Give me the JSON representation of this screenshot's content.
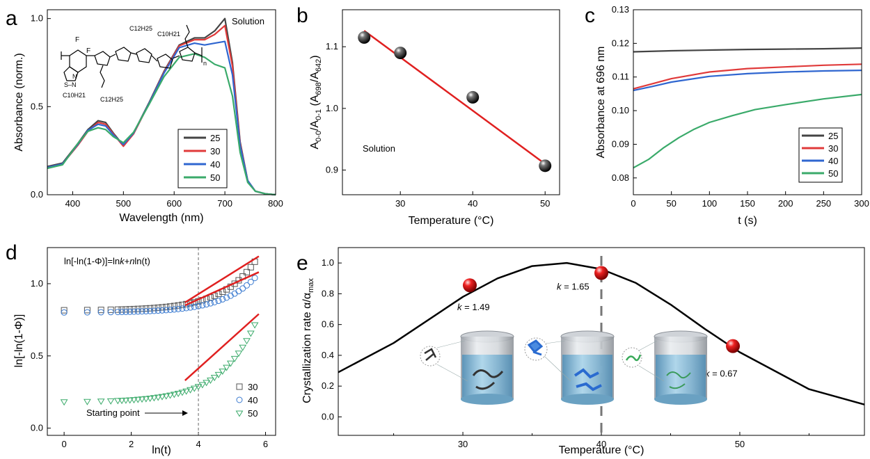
{
  "chart_data": [
    {
      "id": "a",
      "type": "line",
      "panel_label": "a",
      "xlabel": "Wavelength (nm)",
      "ylabel": "Absorbance (norm.)",
      "xlim": [
        350,
        800
      ],
      "ylim": [
        0,
        1.05
      ],
      "xticks": [
        400,
        500,
        600,
        700,
        800
      ],
      "yticks": [
        0.0,
        0.5,
        1.0
      ],
      "annotation": "Solution",
      "legend_position": "bottom-right",
      "series": [
        {
          "name": "25",
          "color": "#444444",
          "x": [
            350,
            380,
            410,
            430,
            450,
            465,
            480,
            500,
            520,
            550,
            580,
            610,
            640,
            660,
            680,
            700,
            715,
            730,
            745,
            760,
            780,
            800
          ],
          "y": [
            0.16,
            0.18,
            0.29,
            0.37,
            0.42,
            0.41,
            0.35,
            0.28,
            0.35,
            0.52,
            0.7,
            0.85,
            0.89,
            0.89,
            0.93,
            1.0,
            0.75,
            0.3,
            0.08,
            0.02,
            0.005,
            0.0
          ]
        },
        {
          "name": "30",
          "color": "#e03a3a",
          "x": [
            350,
            380,
            410,
            430,
            450,
            465,
            480,
            500,
            520,
            550,
            580,
            610,
            640,
            660,
            680,
            700,
            715,
            730,
            745,
            760,
            780,
            800
          ],
          "y": [
            0.155,
            0.175,
            0.28,
            0.36,
            0.41,
            0.4,
            0.345,
            0.275,
            0.345,
            0.515,
            0.695,
            0.845,
            0.88,
            0.88,
            0.91,
            0.96,
            0.73,
            0.29,
            0.08,
            0.02,
            0.005,
            0.0
          ]
        },
        {
          "name": "40",
          "color": "#2f66d0",
          "x": [
            350,
            380,
            410,
            430,
            450,
            465,
            480,
            500,
            520,
            550,
            580,
            610,
            640,
            660,
            680,
            700,
            715,
            730,
            745,
            760,
            780,
            800
          ],
          "y": [
            0.155,
            0.175,
            0.285,
            0.365,
            0.4,
            0.39,
            0.34,
            0.285,
            0.35,
            0.515,
            0.69,
            0.835,
            0.86,
            0.85,
            0.86,
            0.87,
            0.68,
            0.28,
            0.08,
            0.02,
            0.005,
            0.0
          ]
        },
        {
          "name": "50",
          "color": "#3aaa6a",
          "x": [
            350,
            380,
            410,
            430,
            450,
            465,
            480,
            500,
            520,
            550,
            580,
            610,
            640,
            660,
            680,
            700,
            715,
            730,
            745,
            760,
            780,
            800
          ],
          "y": [
            0.15,
            0.17,
            0.29,
            0.36,
            0.38,
            0.37,
            0.33,
            0.295,
            0.355,
            0.51,
            0.67,
            0.78,
            0.8,
            0.78,
            0.74,
            0.72,
            0.56,
            0.24,
            0.07,
            0.02,
            0.005,
            0.0
          ]
        }
      ],
      "inset_structure_labels": {
        "sub1": "C12H25",
        "sub2": "C10H21",
        "sub3": "C10H21",
        "sub4": "C12H25",
        "f1": "F",
        "f2": "F",
        "n": "n",
        "s": "S–N",
        "n2": "N"
      }
    },
    {
      "id": "b",
      "type": "scatter",
      "panel_label": "b",
      "xlabel": "Temperature (°C)",
      "ylabel": "A0-0/A0-1 (A698/A642)",
      "ylabel_parts": {
        "a": "A",
        "s1": "0-0",
        "slash": "/A",
        "s2": "0-1",
        "mid": " (A",
        "s3": "698",
        "slash2": "/A",
        "s4": "642",
        "end": ")"
      },
      "xlim": [
        22,
        52
      ],
      "ylim": [
        0.86,
        1.16
      ],
      "xticks": [
        30,
        40,
        50
      ],
      "yticks": [
        0.9,
        1.0,
        1.1
      ],
      "annotation": "Solution",
      "points": {
        "x": [
          25,
          30,
          40,
          50
        ],
        "y": [
          1.115,
          1.09,
          1.018,
          0.907
        ]
      },
      "fit": {
        "x": [
          25,
          50
        ],
        "y": [
          1.126,
          0.91
        ],
        "color": "#e02020"
      }
    },
    {
      "id": "c",
      "type": "line",
      "panel_label": "c",
      "xlabel": "t (s)",
      "ylabel": "Absorbance at 696 nm",
      "xlim": [
        0,
        300
      ],
      "ylim": [
        0.075,
        0.13
      ],
      "xticks": [
        0,
        50,
        100,
        150,
        200,
        250,
        300
      ],
      "yticks": [
        0.08,
        0.09,
        0.1,
        0.11,
        0.12,
        0.13
      ],
      "legend_position": "bottom-right",
      "series": [
        {
          "name": "25",
          "color": "#444444",
          "x": [
            0,
            50,
            100,
            150,
            200,
            250,
            300
          ],
          "y": [
            0.1175,
            0.1178,
            0.118,
            0.1182,
            0.1183,
            0.1184,
            0.1186
          ]
        },
        {
          "name": "30",
          "color": "#e03a3a",
          "x": [
            0,
            25,
            50,
            100,
            150,
            200,
            250,
            300
          ],
          "y": [
            0.1065,
            0.108,
            0.1095,
            0.1115,
            0.1125,
            0.113,
            0.1135,
            0.1138
          ]
        },
        {
          "name": "40",
          "color": "#2f66d0",
          "x": [
            0,
            25,
            50,
            100,
            150,
            200,
            250,
            300
          ],
          "y": [
            0.106,
            0.1072,
            0.1085,
            0.1102,
            0.111,
            0.1115,
            0.1118,
            0.112
          ]
        },
        {
          "name": "50",
          "color": "#3aaa6a",
          "x": [
            0,
            20,
            40,
            60,
            80,
            100,
            130,
            160,
            200,
            250,
            300
          ],
          "y": [
            0.083,
            0.0855,
            0.089,
            0.092,
            0.0945,
            0.0965,
            0.0985,
            0.1003,
            0.1018,
            0.1035,
            0.1048
          ]
        }
      ]
    },
    {
      "id": "d",
      "type": "scatter",
      "panel_label": "d",
      "xlabel": "ln(t)",
      "ylabel": "ln[-ln(1-Φ)]",
      "xlim": [
        -0.5,
        6.3
      ],
      "ylim": [
        -0.05,
        1.25
      ],
      "xticks": [
        0,
        2,
        4,
        6
      ],
      "yticks": [
        0.0,
        0.5,
        1.0
      ],
      "equation": "ln[-ln(1-Φ)]=lnk+nln(t)",
      "eq_parts": {
        "p1": "ln[-ln(1-Φ)]=ln",
        "k": "k",
        "p2": "+",
        "n": "n",
        "p3": "ln(t)"
      },
      "annotation": "Starting point",
      "starting_point_x": 4,
      "legend_position": "bottom-right",
      "series": [
        {
          "name": "30",
          "marker": "square",
          "color": "#555555"
        },
        {
          "name": "40",
          "marker": "circle",
          "color": "#3a7ad0"
        },
        {
          "name": "50",
          "marker": "triangle-down",
          "color": "#3aaa6a"
        }
      ],
      "fits": [
        {
          "x": [
            3.6,
            5.8
          ],
          "y": [
            0.87,
            1.19
          ],
          "color": "#e02020"
        },
        {
          "x": [
            3.6,
            5.8
          ],
          "y": [
            0.85,
            1.08
          ],
          "color": "#e02020"
        },
        {
          "x": [
            3.6,
            5.8
          ],
          "y": [
            0.33,
            0.79
          ],
          "color": "#e02020"
        }
      ]
    },
    {
      "id": "e",
      "type": "line",
      "panel_label": "e",
      "xlabel": "Temperature (°C)",
      "ylabel": "Crystallization rate α/αmax",
      "ylabel_parts": {
        "main": "Crystallization rate α/α",
        "sub": "max"
      },
      "xlim": [
        21,
        59
      ],
      "ylim": [
        -0.12,
        1.1
      ],
      "xticks": [
        30,
        40,
        50
      ],
      "yticks": [
        0.0,
        0.2,
        0.4,
        0.6,
        0.8,
        1.0
      ],
      "vline_x": 40,
      "curve": {
        "x": [
          21,
          25,
          30,
          32.5,
          35,
          37.5,
          40,
          42.5,
          45,
          47.5,
          50,
          55,
          59
        ],
        "y": [
          0.29,
          0.48,
          0.78,
          0.9,
          0.98,
          1.0,
          0.96,
          0.87,
          0.73,
          0.57,
          0.42,
          0.18,
          0.08
        ],
        "color": "#000000"
      },
      "points": [
        {
          "x": 30.5,
          "y": 0.855,
          "label": "k = 1.49",
          "k": "k",
          "val": " = 1.49"
        },
        {
          "x": 40,
          "y": 0.935,
          "label": "k = 1.65",
          "k": "k",
          "val": " = 1.65"
        },
        {
          "x": 49.5,
          "y": 0.46,
          "label": "k = 0.67",
          "k": "k",
          "val": " = 0.67"
        }
      ]
    }
  ]
}
